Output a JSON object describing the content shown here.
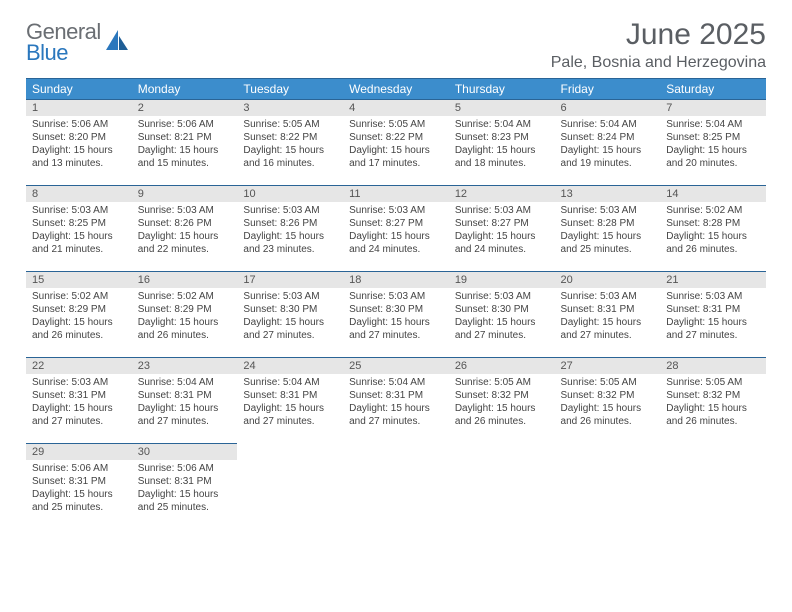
{
  "brand": {
    "name_part1": "General",
    "name_part2": "Blue"
  },
  "title": "June 2025",
  "location": "Pale, Bosnia and Herzegovina",
  "colors": {
    "header_bg": "#3c8dcc",
    "header_border": "#2a6496",
    "daynum_bg": "#e6e6e6",
    "text_muted": "#5a5e63",
    "brand_gray": "#6a6e73",
    "brand_blue": "#2a77bd"
  },
  "day_headers": [
    "Sunday",
    "Monday",
    "Tuesday",
    "Wednesday",
    "Thursday",
    "Friday",
    "Saturday"
  ],
  "weeks": [
    [
      {
        "n": "1",
        "sr": "5:06 AM",
        "ss": "8:20 PM",
        "dl": "15 hours and 13 minutes."
      },
      {
        "n": "2",
        "sr": "5:06 AM",
        "ss": "8:21 PM",
        "dl": "15 hours and 15 minutes."
      },
      {
        "n": "3",
        "sr": "5:05 AM",
        "ss": "8:22 PM",
        "dl": "15 hours and 16 minutes."
      },
      {
        "n": "4",
        "sr": "5:05 AM",
        "ss": "8:22 PM",
        "dl": "15 hours and 17 minutes."
      },
      {
        "n": "5",
        "sr": "5:04 AM",
        "ss": "8:23 PM",
        "dl": "15 hours and 18 minutes."
      },
      {
        "n": "6",
        "sr": "5:04 AM",
        "ss": "8:24 PM",
        "dl": "15 hours and 19 minutes."
      },
      {
        "n": "7",
        "sr": "5:04 AM",
        "ss": "8:25 PM",
        "dl": "15 hours and 20 minutes."
      }
    ],
    [
      {
        "n": "8",
        "sr": "5:03 AM",
        "ss": "8:25 PM",
        "dl": "15 hours and 21 minutes."
      },
      {
        "n": "9",
        "sr": "5:03 AM",
        "ss": "8:26 PM",
        "dl": "15 hours and 22 minutes."
      },
      {
        "n": "10",
        "sr": "5:03 AM",
        "ss": "8:26 PM",
        "dl": "15 hours and 23 minutes."
      },
      {
        "n": "11",
        "sr": "5:03 AM",
        "ss": "8:27 PM",
        "dl": "15 hours and 24 minutes."
      },
      {
        "n": "12",
        "sr": "5:03 AM",
        "ss": "8:27 PM",
        "dl": "15 hours and 24 minutes."
      },
      {
        "n": "13",
        "sr": "5:03 AM",
        "ss": "8:28 PM",
        "dl": "15 hours and 25 minutes."
      },
      {
        "n": "14",
        "sr": "5:02 AM",
        "ss": "8:28 PM",
        "dl": "15 hours and 26 minutes."
      }
    ],
    [
      {
        "n": "15",
        "sr": "5:02 AM",
        "ss": "8:29 PM",
        "dl": "15 hours and 26 minutes."
      },
      {
        "n": "16",
        "sr": "5:02 AM",
        "ss": "8:29 PM",
        "dl": "15 hours and 26 minutes."
      },
      {
        "n": "17",
        "sr": "5:03 AM",
        "ss": "8:30 PM",
        "dl": "15 hours and 27 minutes."
      },
      {
        "n": "18",
        "sr": "5:03 AM",
        "ss": "8:30 PM",
        "dl": "15 hours and 27 minutes."
      },
      {
        "n": "19",
        "sr": "5:03 AM",
        "ss": "8:30 PM",
        "dl": "15 hours and 27 minutes."
      },
      {
        "n": "20",
        "sr": "5:03 AM",
        "ss": "8:31 PM",
        "dl": "15 hours and 27 minutes."
      },
      {
        "n": "21",
        "sr": "5:03 AM",
        "ss": "8:31 PM",
        "dl": "15 hours and 27 minutes."
      }
    ],
    [
      {
        "n": "22",
        "sr": "5:03 AM",
        "ss": "8:31 PM",
        "dl": "15 hours and 27 minutes."
      },
      {
        "n": "23",
        "sr": "5:04 AM",
        "ss": "8:31 PM",
        "dl": "15 hours and 27 minutes."
      },
      {
        "n": "24",
        "sr": "5:04 AM",
        "ss": "8:31 PM",
        "dl": "15 hours and 27 minutes."
      },
      {
        "n": "25",
        "sr": "5:04 AM",
        "ss": "8:31 PM",
        "dl": "15 hours and 27 minutes."
      },
      {
        "n": "26",
        "sr": "5:05 AM",
        "ss": "8:32 PM",
        "dl": "15 hours and 26 minutes."
      },
      {
        "n": "27",
        "sr": "5:05 AM",
        "ss": "8:32 PM",
        "dl": "15 hours and 26 minutes."
      },
      {
        "n": "28",
        "sr": "5:05 AM",
        "ss": "8:32 PM",
        "dl": "15 hours and 26 minutes."
      }
    ],
    [
      {
        "n": "29",
        "sr": "5:06 AM",
        "ss": "8:31 PM",
        "dl": "15 hours and 25 minutes."
      },
      {
        "n": "30",
        "sr": "5:06 AM",
        "ss": "8:31 PM",
        "dl": "15 hours and 25 minutes."
      },
      null,
      null,
      null,
      null,
      null
    ]
  ],
  "labels": {
    "sunrise": "Sunrise:",
    "sunset": "Sunset:",
    "daylight": "Daylight:"
  }
}
